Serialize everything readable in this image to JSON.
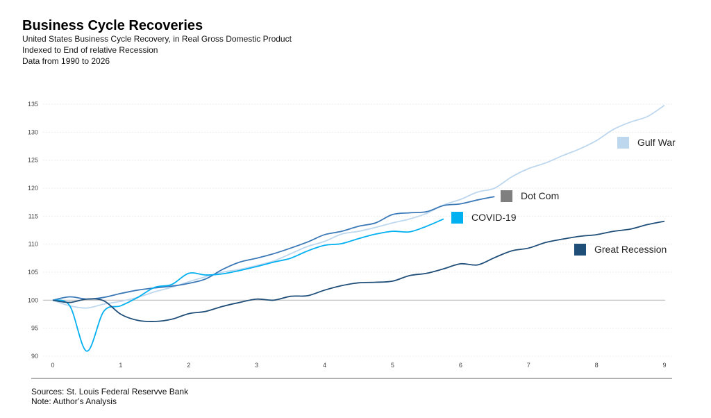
{
  "header": {
    "title": "Business Cycle Recoveries",
    "subtitle1": "United States Business Cycle Recovery, in Real Gross Domestic Product",
    "subtitle2": "Indexed to End of relative Recession",
    "subtitle3": "Data from 1990 to 2026"
  },
  "footer": {
    "sources": "Sources:  St. Louis Federal Reservve Bank",
    "note": "Note: Author’s Analysis"
  },
  "chart_data": {
    "type": "line",
    "title": "Business Cycle Recoveries",
    "xlabel": "",
    "ylabel": "",
    "xlim": [
      0,
      9
    ],
    "ylim": [
      90,
      135
    ],
    "xticks": [
      0,
      1,
      2,
      3,
      4,
      5,
      6,
      7,
      8,
      9
    ],
    "yticks": [
      90,
      95,
      100,
      105,
      110,
      115,
      120,
      125,
      130,
      135
    ],
    "grid": true,
    "baseline": 100,
    "legend": "right, inline at series ends",
    "series": [
      {
        "name": "Gulf War",
        "color": "#bdd7ee",
        "x_step": 0.25,
        "values": [
          100,
          99,
          98.6,
          99.3,
          99.8,
          100.5,
          101.5,
          102.3,
          103.3,
          104.2,
          105,
          105.5,
          106.2,
          107,
          108.3,
          109.6,
          110.5,
          111.8,
          112.3,
          113,
          113.8,
          114.5,
          115.5,
          117,
          118,
          119.3,
          120,
          122,
          123.5,
          124.5,
          125.8,
          127,
          128.5,
          130.5,
          131.8,
          132.8,
          134.8
        ]
      },
      {
        "name": "Dot Com",
        "color": "#3a78b8",
        "legend_color": "#7f7f7f",
        "x_step": 0.25,
        "values": [
          100,
          100.6,
          100.2,
          100.5,
          101.2,
          101.8,
          102.2,
          102.5,
          103,
          103.8,
          105.5,
          106.8,
          107.5,
          108.3,
          109.3,
          110.4,
          111.7,
          112.3,
          113.2,
          113.8,
          115.3,
          115.6,
          115.8,
          116.9,
          117.2,
          117.9,
          118.5
        ]
      },
      {
        "name": "COVID-19",
        "color": "#00b0f0",
        "x_step": 0.25,
        "values": [
          100,
          99,
          90.9,
          98,
          99,
          100.5,
          102.3,
          102.8,
          104.8,
          104.5,
          104.7,
          105.3,
          106,
          106.8,
          107.5,
          108.8,
          109.8,
          110.1,
          111,
          111.8,
          112.3,
          112.2,
          113.2,
          114.5
        ]
      },
      {
        "name": "Great Recession",
        "color": "#1f4e79",
        "x_step": 0.25,
        "values": [
          100,
          99.6,
          100.2,
          99.9,
          97.5,
          96.4,
          96.2,
          96.6,
          97.6,
          98,
          98.9,
          99.6,
          100.2,
          100,
          100.7,
          100.8,
          101.8,
          102.6,
          103.1,
          103.2,
          103.4,
          104.4,
          104.8,
          105.6,
          106.5,
          106.3,
          107.6,
          108.8,
          109.3,
          110.3,
          110.9,
          111.4,
          111.7,
          112.3,
          112.7,
          113.5,
          114.1
        ]
      }
    ]
  }
}
